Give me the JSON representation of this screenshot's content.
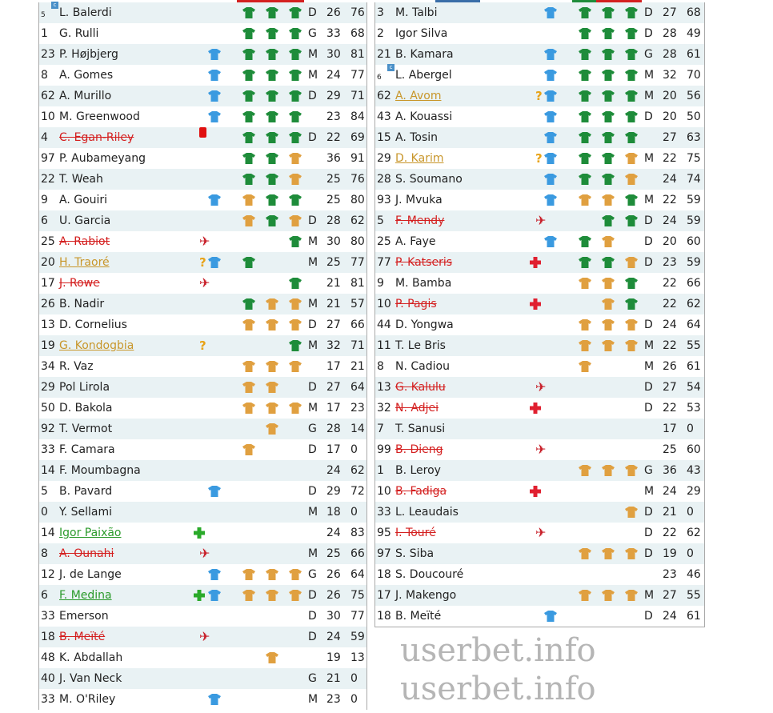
{
  "watermark": "userbet.info",
  "colors": {
    "green_shirt": "#1e8c3a",
    "orange_shirt": "#e0a040",
    "blue_shirt": "#3a9ae0",
    "out": "#d42020",
    "doubt": "#c8962a",
    "back": "#2a9a2a"
  },
  "left_table": {
    "top_bars": [
      "#d42020"
    ],
    "rows": [
      {
        "num": "5",
        "name": "L. Balerdi",
        "captain": true,
        "status": "",
        "blue": false,
        "shirts": [
          "g",
          "g",
          "g"
        ],
        "pos": "D",
        "age": "26",
        "rating": "76"
      },
      {
        "num": "1",
        "name": "G. Rulli",
        "status": "",
        "blue": false,
        "shirts": [
          "g",
          "g",
          "g"
        ],
        "pos": "G",
        "age": "33",
        "rating": "68"
      },
      {
        "num": "23",
        "name": "P. Højbjerg",
        "status": "",
        "blue": true,
        "shirts": [
          "g",
          "g",
          "g"
        ],
        "pos": "M",
        "age": "30",
        "rating": "81"
      },
      {
        "num": "8",
        "name": "A. Gomes",
        "status": "",
        "blue": true,
        "shirts": [
          "g",
          "g",
          "g"
        ],
        "pos": "M",
        "age": "24",
        "rating": "77"
      },
      {
        "num": "62",
        "name": "A. Murillo",
        "status": "",
        "blue": true,
        "shirts": [
          "g",
          "g",
          "g"
        ],
        "pos": "D",
        "age": "29",
        "rating": "71"
      },
      {
        "num": "10",
        "name": "M. Greenwood",
        "status": "",
        "blue": true,
        "shirts": [
          "g",
          "g",
          "g"
        ],
        "pos": "",
        "age": "23",
        "rating": "84"
      },
      {
        "num": "4",
        "name": "C. Egan-Riley",
        "status": "red-card",
        "blue": false,
        "shirts": [
          "g",
          "g",
          "g"
        ],
        "pos": "D",
        "age": "22",
        "rating": "69"
      },
      {
        "num": "97",
        "name": "P. Aubameyang",
        "status": "",
        "blue": false,
        "shirts": [
          "g",
          "g",
          "o"
        ],
        "pos": "",
        "age": "36",
        "rating": "91"
      },
      {
        "num": "22",
        "name": "T. Weah",
        "status": "",
        "blue": false,
        "shirts": [
          "g",
          "g",
          "o"
        ],
        "pos": "",
        "age": "25",
        "rating": "76"
      },
      {
        "num": "9",
        "name": "A. Gouiri",
        "status": "",
        "blue": true,
        "shirts": [
          "o",
          "g",
          "g"
        ],
        "pos": "",
        "age": "25",
        "rating": "80"
      },
      {
        "num": "6",
        "name": "U. Garcia",
        "status": "",
        "blue": false,
        "shirts": [
          "o",
          "g",
          "o"
        ],
        "pos": "D",
        "age": "28",
        "rating": "62"
      },
      {
        "num": "25",
        "name": "A. Rabiot",
        "status": "plane",
        "blue": false,
        "shirts": [
          "",
          "",
          "g"
        ],
        "pos": "M",
        "age": "30",
        "rating": "80"
      },
      {
        "num": "20",
        "name": "H. Traoré",
        "status": "doubtful",
        "blue": true,
        "shirts": [
          "g",
          "",
          ""
        ],
        "pos": "M",
        "age": "25",
        "rating": "77"
      },
      {
        "num": "17",
        "name": "J. Rowe",
        "status": "plane",
        "blue": false,
        "shirts": [
          "",
          "",
          "g"
        ],
        "pos": "",
        "age": "21",
        "rating": "81"
      },
      {
        "num": "26",
        "name": "B. Nadir",
        "status": "",
        "blue": false,
        "shirts": [
          "g",
          "o",
          "o"
        ],
        "pos": "M",
        "age": "21",
        "rating": "57"
      },
      {
        "num": "13",
        "name": "D. Cornelius",
        "status": "",
        "blue": false,
        "shirts": [
          "o",
          "o",
          "o"
        ],
        "pos": "D",
        "age": "27",
        "rating": "66"
      },
      {
        "num": "19",
        "name": "G. Kondogbia",
        "status": "doubtful",
        "blue": false,
        "shirts": [
          "",
          "",
          "g"
        ],
        "pos": "M",
        "age": "32",
        "rating": "71"
      },
      {
        "num": "34",
        "name": "R. Vaz",
        "status": "",
        "blue": false,
        "shirts": [
          "o",
          "o",
          "o"
        ],
        "pos": "",
        "age": "17",
        "rating": "21"
      },
      {
        "num": "29",
        "name": "Pol Lirola",
        "status": "",
        "blue": false,
        "shirts": [
          "o",
          "o",
          ""
        ],
        "pos": "D",
        "age": "27",
        "rating": "64"
      },
      {
        "num": "50",
        "name": "D. Bakola",
        "status": "",
        "blue": false,
        "shirts": [
          "o",
          "o",
          "o"
        ],
        "pos": "M",
        "age": "17",
        "rating": "23"
      },
      {
        "num": "92",
        "name": "T. Vermot",
        "status": "",
        "blue": false,
        "shirts": [
          "",
          "o",
          ""
        ],
        "pos": "G",
        "age": "28",
        "rating": "14"
      },
      {
        "num": "33",
        "name": "F. Camara",
        "status": "",
        "blue": false,
        "shirts": [
          "o",
          "",
          ""
        ],
        "pos": "D",
        "age": "17",
        "rating": "0"
      },
      {
        "num": "14",
        "name": "F. Moumbagna",
        "status": "",
        "blue": false,
        "shirts": [
          "",
          "",
          ""
        ],
        "pos": "",
        "age": "24",
        "rating": "62"
      },
      {
        "num": "5",
        "name": "B. Pavard",
        "status": "",
        "blue": true,
        "shirts": [
          "",
          "",
          ""
        ],
        "pos": "D",
        "age": "29",
        "rating": "72"
      },
      {
        "num": "0",
        "name": "Y. Sellami",
        "status": "",
        "blue": false,
        "shirts": [
          "",
          "",
          ""
        ],
        "pos": "M",
        "age": "18",
        "rating": "0"
      },
      {
        "num": "14",
        "name": "Igor Paixão",
        "status": "back",
        "blue": false,
        "shirts": [
          "",
          "",
          ""
        ],
        "pos": "",
        "age": "24",
        "rating": "83"
      },
      {
        "num": "8",
        "name": "A. Ounahi",
        "status": "plane",
        "blue": false,
        "shirts": [
          "",
          "",
          ""
        ],
        "pos": "M",
        "age": "25",
        "rating": "66"
      },
      {
        "num": "12",
        "name": "J. de Lange",
        "status": "",
        "blue": true,
        "shirts": [
          "o",
          "o",
          "o"
        ],
        "pos": "G",
        "age": "26",
        "rating": "64"
      },
      {
        "num": "6",
        "name": "F. Medina",
        "status": "back",
        "blue": true,
        "shirts": [
          "o",
          "o",
          "o"
        ],
        "pos": "D",
        "age": "26",
        "rating": "75"
      },
      {
        "num": "33",
        "name": "Emerson",
        "status": "",
        "blue": false,
        "shirts": [
          "",
          "",
          ""
        ],
        "pos": "D",
        "age": "30",
        "rating": "77"
      },
      {
        "num": "18",
        "name": "B. Meïté",
        "status": "plane",
        "blue": false,
        "shirts": [
          "",
          "",
          ""
        ],
        "pos": "D",
        "age": "24",
        "rating": "59"
      },
      {
        "num": "48",
        "name": "K. Abdallah",
        "status": "",
        "blue": false,
        "shirts": [
          "",
          "o",
          ""
        ],
        "pos": "",
        "age": "19",
        "rating": "13"
      },
      {
        "num": "40",
        "name": "J. Van Neck",
        "status": "",
        "blue": false,
        "shirts": [
          "",
          "",
          ""
        ],
        "pos": "G",
        "age": "21",
        "rating": "0"
      },
      {
        "num": "33",
        "name": "M. O'Riley",
        "status": "",
        "blue": true,
        "shirts": [
          "",
          "",
          ""
        ],
        "pos": "M",
        "age": "23",
        "rating": "0"
      }
    ]
  },
  "right_table": {
    "top_bars": [
      "#3a6ea8",
      "#1e8c3a",
      "#d42020"
    ],
    "rows": [
      {
        "num": "3",
        "name": "M. Talbi",
        "status": "",
        "blue": true,
        "shirts": [
          "g",
          "g",
          "g"
        ],
        "pos": "D",
        "age": "27",
        "rating": "68"
      },
      {
        "num": "2",
        "name": "Igor Silva",
        "status": "",
        "blue": false,
        "shirts": [
          "g",
          "g",
          "g"
        ],
        "pos": "D",
        "age": "28",
        "rating": "49"
      },
      {
        "num": "21",
        "name": "B. Kamara",
        "status": "",
        "blue": true,
        "shirts": [
          "g",
          "g",
          "g"
        ],
        "pos": "G",
        "age": "28",
        "rating": "61"
      },
      {
        "num": "6",
        "name": "L. Abergel",
        "captain": true,
        "status": "",
        "blue": true,
        "shirts": [
          "g",
          "g",
          "g"
        ],
        "pos": "M",
        "age": "32",
        "rating": "70"
      },
      {
        "num": "62",
        "name": "A. Avom",
        "status": "doubtful",
        "blue": true,
        "shirts": [
          "g",
          "g",
          "g"
        ],
        "pos": "M",
        "age": "20",
        "rating": "56"
      },
      {
        "num": "43",
        "name": "A. Kouassi",
        "status": "",
        "blue": true,
        "shirts": [
          "g",
          "g",
          "g"
        ],
        "pos": "D",
        "age": "20",
        "rating": "50"
      },
      {
        "num": "15",
        "name": "A. Tosin",
        "status": "",
        "blue": true,
        "shirts": [
          "g",
          "g",
          "g"
        ],
        "pos": "",
        "age": "27",
        "rating": "63"
      },
      {
        "num": "29",
        "name": "D. Karim",
        "status": "doubtful",
        "blue": true,
        "shirts": [
          "g",
          "g",
          "o"
        ],
        "pos": "M",
        "age": "22",
        "rating": "75"
      },
      {
        "num": "28",
        "name": "S. Soumano",
        "status": "",
        "blue": true,
        "shirts": [
          "g",
          "g",
          "o"
        ],
        "pos": "",
        "age": "24",
        "rating": "74"
      },
      {
        "num": "93",
        "name": "J. Mvuka",
        "status": "",
        "blue": true,
        "shirts": [
          "o",
          "o",
          "g"
        ],
        "pos": "M",
        "age": "22",
        "rating": "59"
      },
      {
        "num": "5",
        "name": "F. Mendy",
        "status": "plane",
        "blue": false,
        "shirts": [
          "",
          "g",
          "g"
        ],
        "pos": "D",
        "age": "24",
        "rating": "59"
      },
      {
        "num": "25",
        "name": "A. Faye",
        "status": "",
        "blue": true,
        "shirts": [
          "g",
          "o",
          ""
        ],
        "pos": "D",
        "age": "20",
        "rating": "60"
      },
      {
        "num": "77",
        "name": "P. Katseris",
        "status": "injury",
        "blue": false,
        "shirts": [
          "g",
          "g",
          "o"
        ],
        "pos": "D",
        "age": "23",
        "rating": "59"
      },
      {
        "num": "9",
        "name": "M. Bamba",
        "status": "",
        "blue": false,
        "shirts": [
          "o",
          "o",
          "g"
        ],
        "pos": "",
        "age": "22",
        "rating": "66"
      },
      {
        "num": "10",
        "name": "P. Pagis",
        "status": "injury",
        "blue": false,
        "shirts": [
          "",
          "o",
          "g"
        ],
        "pos": "",
        "age": "22",
        "rating": "62"
      },
      {
        "num": "44",
        "name": "D. Yongwa",
        "status": "",
        "blue": false,
        "shirts": [
          "o",
          "o",
          "o"
        ],
        "pos": "D",
        "age": "24",
        "rating": "64"
      },
      {
        "num": "11",
        "name": "T. Le Bris",
        "status": "",
        "blue": false,
        "shirts": [
          "o",
          "o",
          "o"
        ],
        "pos": "M",
        "age": "22",
        "rating": "55"
      },
      {
        "num": "8",
        "name": "N. Cadiou",
        "status": "",
        "blue": false,
        "shirts": [
          "o",
          "",
          ""
        ],
        "pos": "M",
        "age": "26",
        "rating": "61"
      },
      {
        "num": "13",
        "name": "G. Kalulu",
        "status": "plane",
        "blue": false,
        "shirts": [
          "",
          "",
          ""
        ],
        "pos": "D",
        "age": "27",
        "rating": "54"
      },
      {
        "num": "32",
        "name": "N. Adjei",
        "status": "injury",
        "blue": false,
        "shirts": [
          "",
          "",
          ""
        ],
        "pos": "D",
        "age": "22",
        "rating": "53"
      },
      {
        "num": "7",
        "name": "T. Sanusi",
        "status": "",
        "blue": false,
        "shirts": [
          "",
          "",
          ""
        ],
        "pos": "",
        "age": "17",
        "rating": "0"
      },
      {
        "num": "99",
        "name": "B. Dieng",
        "status": "plane",
        "blue": false,
        "shirts": [
          "",
          "",
          ""
        ],
        "pos": "",
        "age": "25",
        "rating": "60"
      },
      {
        "num": "1",
        "name": "B. Leroy",
        "status": "",
        "blue": false,
        "shirts": [
          "o",
          "o",
          "o"
        ],
        "pos": "G",
        "age": "36",
        "rating": "43"
      },
      {
        "num": "10",
        "name": "B. Fadiga",
        "status": "injury",
        "blue": false,
        "shirts": [
          "",
          "",
          ""
        ],
        "pos": "M",
        "age": "24",
        "rating": "29"
      },
      {
        "num": "33",
        "name": "L. Leaudais",
        "status": "",
        "blue": false,
        "shirts": [
          "",
          "",
          "o"
        ],
        "pos": "D",
        "age": "21",
        "rating": "0"
      },
      {
        "num": "95",
        "name": "I. Touré",
        "status": "plane",
        "blue": false,
        "shirts": [
          "",
          "",
          ""
        ],
        "pos": "D",
        "age": "22",
        "rating": "62"
      },
      {
        "num": "97",
        "name": "S. Siba",
        "status": "",
        "blue": false,
        "shirts": [
          "o",
          "o",
          "o"
        ],
        "pos": "D",
        "age": "19",
        "rating": "0"
      },
      {
        "num": "18",
        "name": "S. Doucouré",
        "status": "",
        "blue": false,
        "shirts": [
          "",
          "",
          ""
        ],
        "pos": "",
        "age": "23",
        "rating": "46"
      },
      {
        "num": "17",
        "name": "J. Makengo",
        "status": "",
        "blue": false,
        "shirts": [
          "o",
          "o",
          "o"
        ],
        "pos": "M",
        "age": "27",
        "rating": "55"
      },
      {
        "num": "18",
        "name": "B. Meïté",
        "status": "",
        "blue": true,
        "shirts": [
          "",
          "",
          ""
        ],
        "pos": "D",
        "age": "24",
        "rating": "61"
      }
    ]
  }
}
